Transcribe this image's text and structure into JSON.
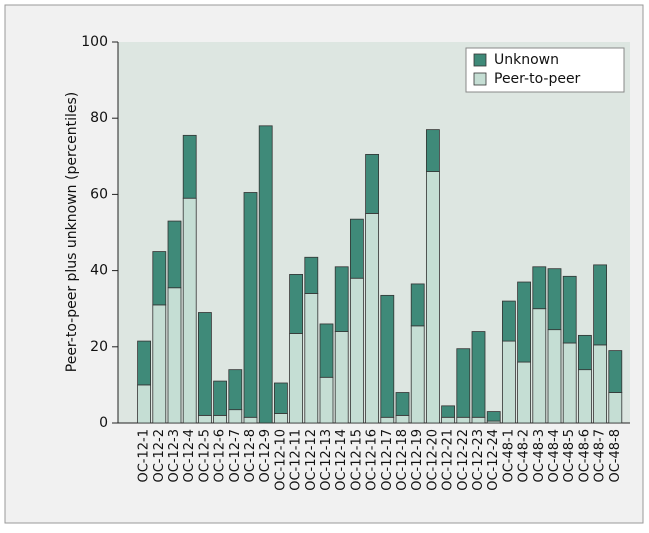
{
  "chart_data": {
    "type": "bar",
    "stacked": true,
    "y_label": "Peer-to-peer plus unknown (percentiles)",
    "categories": [
      "OC-12-1",
      "OC-12-2",
      "OC-12-3",
      "OC-12-4",
      "OC-12-5",
      "OC-12-6",
      "OC-12-7",
      "OC-12-8",
      "OC-12-9",
      "OC-12-10",
      "OC-12-11",
      "OC-12-12",
      "OC-12-13",
      "OC-12-14",
      "OC-12-15",
      "OC-12-16",
      "OC-12-17",
      "OC-12-18",
      "OC-12-19",
      "OC-12-20",
      "OC-12-21",
      "OC-12-22",
      "OC-12-23",
      "OC-12-24",
      "OC-48-1",
      "OC-48-2",
      "OC-48-3",
      "OC-48-4",
      "OC-48-5",
      "OC-48-6",
      "OC-48-7",
      "OC-48-8"
    ],
    "series": [
      {
        "name": "Peer-to-peer",
        "color": "#c5ded4",
        "values": [
          10,
          31,
          35.5,
          59,
          2,
          2,
          3.5,
          1.5,
          0,
          2.5,
          23.5,
          34,
          12,
          24,
          38,
          55,
          1.5,
          2,
          25.5,
          66,
          1.5,
          1.5,
          1.5,
          0.5,
          21.5,
          16,
          30,
          24.5,
          21,
          14,
          20.5,
          8
        ]
      },
      {
        "name": "Unknown",
        "color": "#3f8a79",
        "values": [
          11.5,
          14,
          17.5,
          16.5,
          27,
          9,
          10.5,
          59,
          78,
          8,
          15.5,
          9.5,
          14,
          17,
          15.5,
          15.5,
          32,
          6,
          11,
          11,
          3,
          18,
          22.5,
          2.5,
          10.5,
          21,
          11,
          16,
          17.5,
          9,
          21,
          11
        ]
      }
    ],
    "ylim": [
      0,
      100
    ],
    "yticks": [
      0,
      20,
      40,
      60,
      80,
      100
    ],
    "grid": false,
    "legend": "upper right"
  }
}
